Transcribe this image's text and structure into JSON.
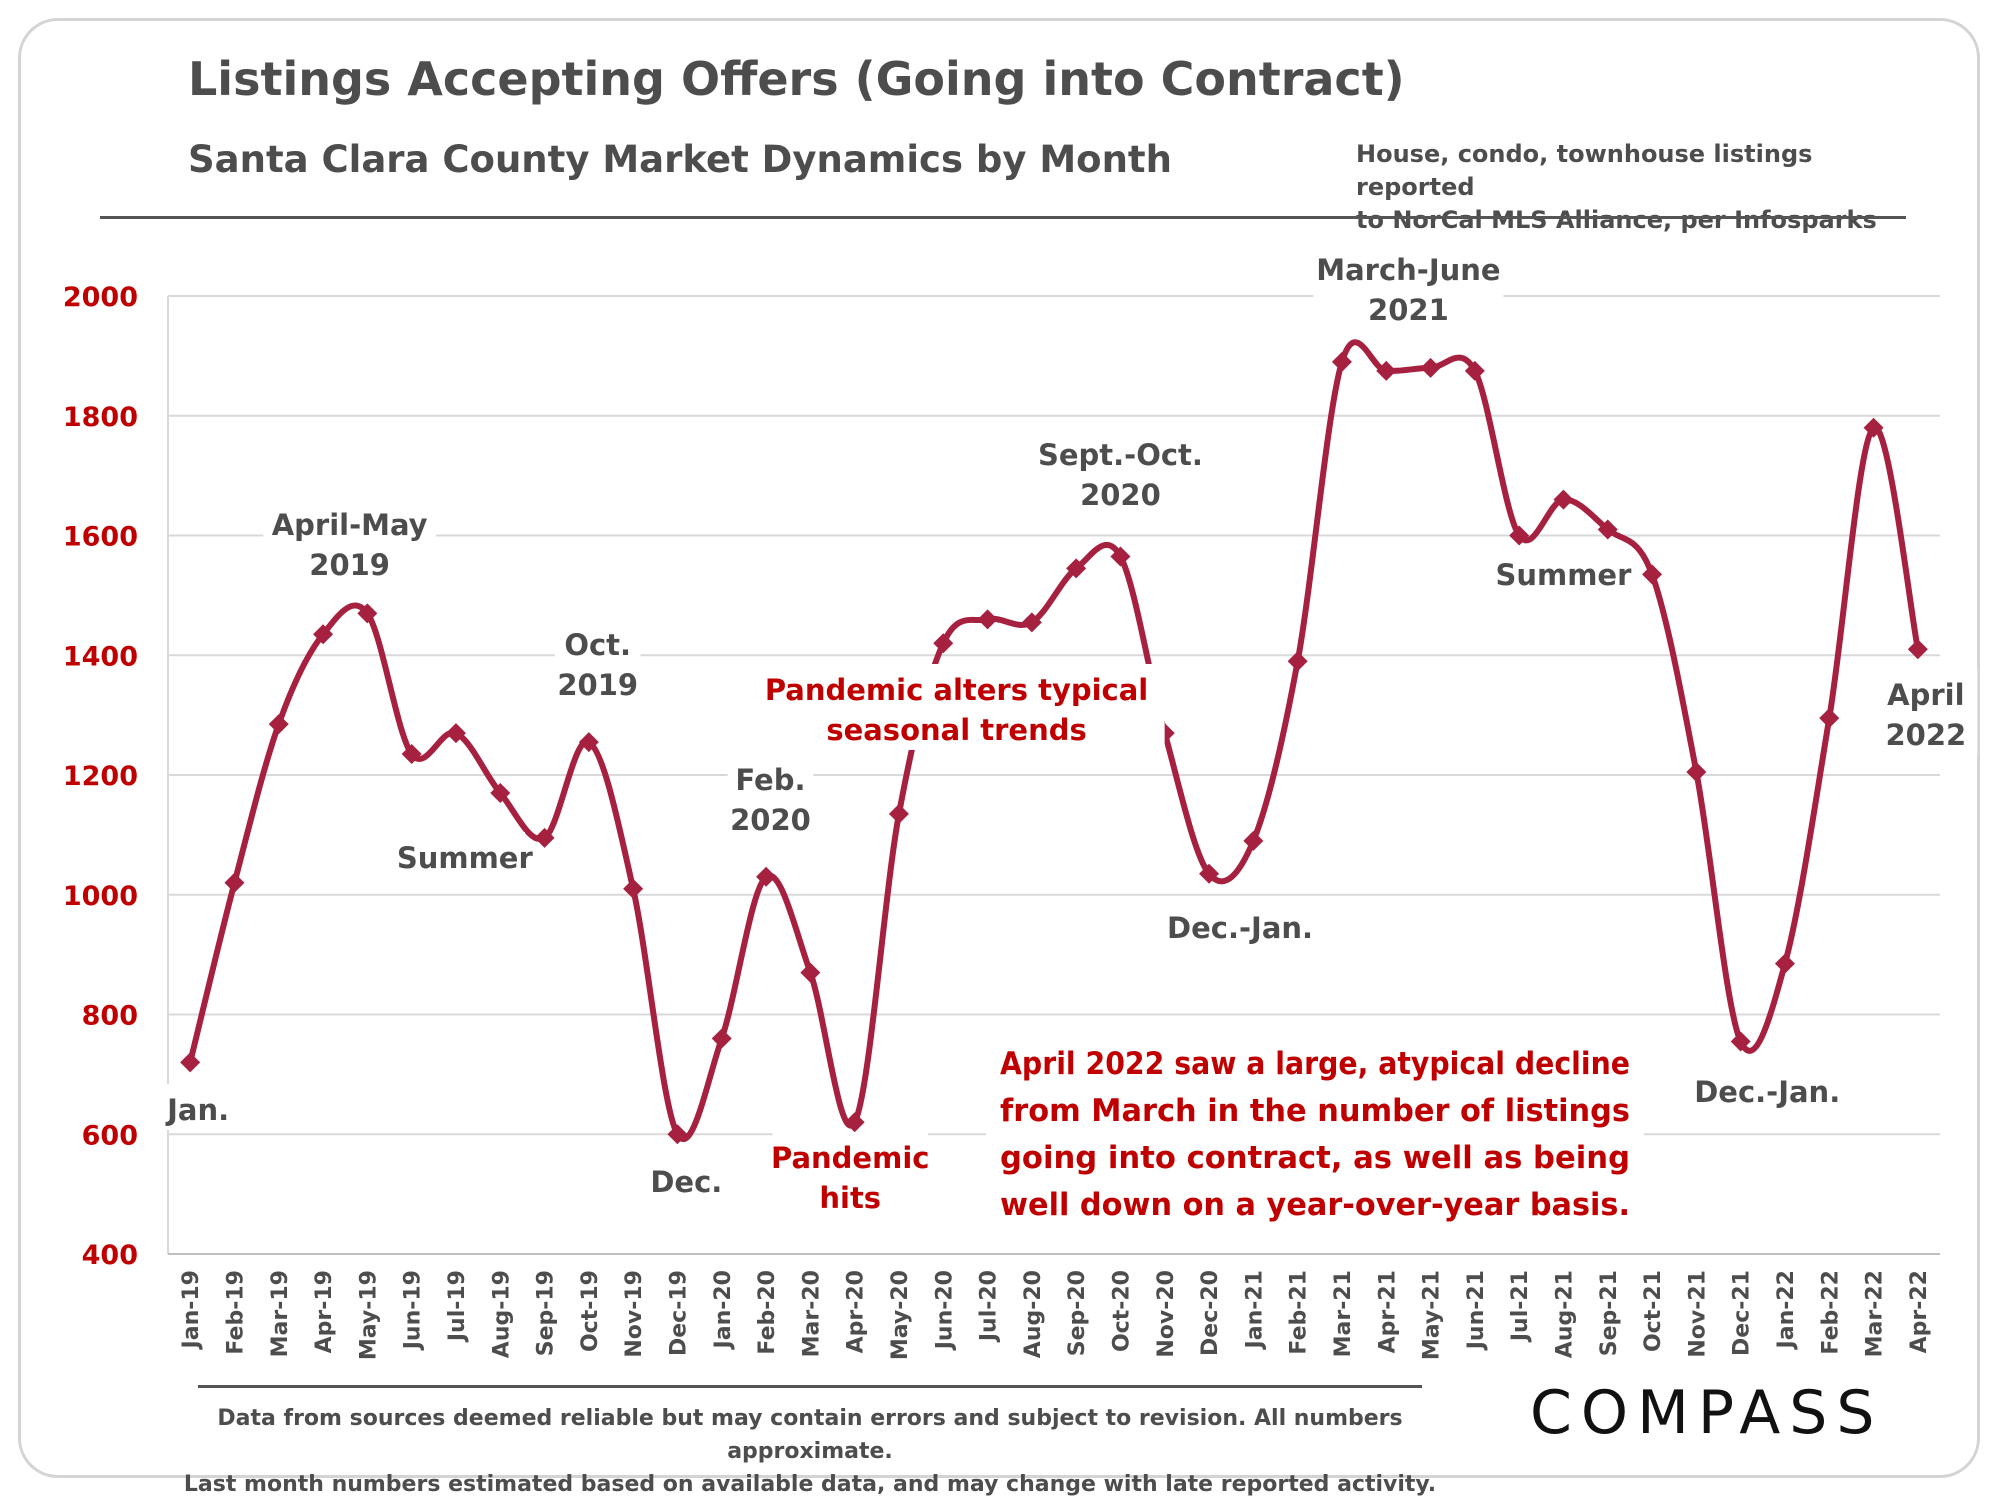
{
  "header": {
    "title": "Listings Accepting Offers (Going into Contract)",
    "subtitle": "Santa Clara County Market Dynamics by Month",
    "source_line1": "House, condo, townhouse listings reported",
    "source_line2": "to NorCal MLS Alliance, per Infosparks"
  },
  "footer": {
    "disclaimer_line1": "Data from sources deemed reliable but may contain errors and subject to revision. All numbers approximate.",
    "disclaimer_line2": "Last month numbers estimated based on available data, and may change with late reported activity.",
    "brand": "COMPASS"
  },
  "colors": {
    "series": "#a6213f",
    "axis_text": "#c00000",
    "label_text": "#4d4d4d",
    "highlight_text": "#c00000",
    "grid": "#d9d9d9"
  },
  "chart_data": {
    "type": "line",
    "title": "Listings Accepting Offers (Going into Contract)",
    "subtitle": "Santa Clara County Market Dynamics by Month",
    "xlabel": "",
    "ylabel": "",
    "ylim": [
      400,
      2000
    ],
    "yticks": [
      400,
      600,
      800,
      1000,
      1200,
      1400,
      1600,
      1800,
      2000
    ],
    "grid": true,
    "legend": "none",
    "categories": [
      "Jan-19",
      "Feb-19",
      "Mar-19",
      "Apr-19",
      "May-19",
      "Jun-19",
      "Jul-19",
      "Aug-19",
      "Sep-19",
      "Oct-19",
      "Nov-19",
      "Dec-19",
      "Jan-20",
      "Feb-20",
      "Mar-20",
      "Apr-20",
      "May-20",
      "Jun-20",
      "Jul-20",
      "Aug-20",
      "Sep-20",
      "Oct-20",
      "Nov-20",
      "Dec-20",
      "Jan-21",
      "Feb-21",
      "Mar-21",
      "Apr-21",
      "May-21",
      "Jun-21",
      "Jul-21",
      "Aug-21",
      "Sep-21",
      "Oct-21",
      "Nov-21",
      "Dec-21",
      "Jan-22",
      "Feb-22",
      "Mar-22",
      "Apr-22"
    ],
    "series": [
      {
        "values": [
          720,
          1020,
          1285,
          1435,
          1470,
          1235,
          1270,
          1170,
          1095,
          1255,
          1010,
          600,
          760,
          1030,
          870,
          620,
          1135,
          1420,
          1460,
          1455,
          1545,
          1565,
          1270,
          1035,
          1090,
          1390,
          1890,
          1875,
          1880,
          1875,
          1600,
          1660,
          1610,
          1535,
          1205,
          755,
          885,
          1295,
          1780,
          1410
        ]
      }
    ],
    "annotations": [
      {
        "lines": [
          "Jan."
        ],
        "index": 0,
        "style": "normal"
      },
      {
        "lines": [
          "April-May",
          "2019"
        ],
        "index": 3.6,
        "style": "normal"
      },
      {
        "lines": [
          "Summer"
        ],
        "index": 6.2,
        "style": "normal"
      },
      {
        "lines": [
          "Oct.",
          "2019"
        ],
        "index": 9.2,
        "style": "normal"
      },
      {
        "lines": [
          "Dec."
        ],
        "index": 11.2,
        "style": "normal"
      },
      {
        "lines": [
          "Feb.",
          "2020"
        ],
        "index": 13.1,
        "style": "normal"
      },
      {
        "lines": [
          "Pandemic",
          "hits"
        ],
        "index": 14.9,
        "style": "highlight"
      },
      {
        "lines": [
          "Pandemic alters typical",
          "seasonal trends"
        ],
        "index": 17.3,
        "style": "highlight"
      },
      {
        "lines": [
          "Sept.-Oct.",
          "2020"
        ],
        "index": 21.0,
        "style": "normal"
      },
      {
        "lines": [
          "Dec.-Jan."
        ],
        "index": 23.7,
        "style": "normal"
      },
      {
        "lines": [
          "March-June",
          "2021"
        ],
        "index": 27.5,
        "style": "normal"
      },
      {
        "lines": [
          "Summer"
        ],
        "index": 31.0,
        "style": "normal"
      },
      {
        "lines": [
          "Dec.-Jan."
        ],
        "index": 35.6,
        "style": "normal"
      },
      {
        "lines": [
          "April",
          "2022"
        ],
        "index": 39.0,
        "style": "normal"
      }
    ],
    "callout": {
      "lines": [
        "April 2022 saw a large, atypical decline",
        "from March in the number of listings",
        "going into contract, as well as being",
        "well down on a year-over-year basis."
      ]
    }
  }
}
